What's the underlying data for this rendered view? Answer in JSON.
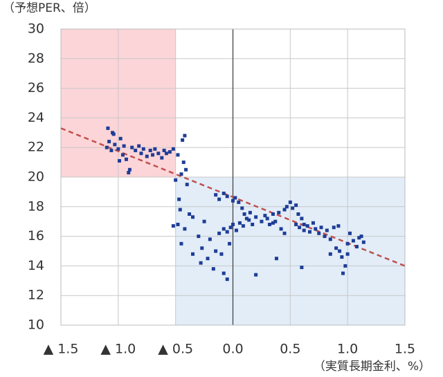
{
  "chart_data": {
    "type": "scatter",
    "y_label": "（予想PER、倍）",
    "x_label": "（実質長期金利、%）",
    "xlim": [
      -1.5,
      1.5
    ],
    "xticks": [
      {
        "value": -1.5,
        "label": "▲ 1.5"
      },
      {
        "value": -1.0,
        "label": "▲ 1.0"
      },
      {
        "value": -0.5,
        "label": "▲ 0.5"
      },
      {
        "value": 0,
        "label": "0.0"
      },
      0.5,
      {
        "value": 1.0,
        "label": "1.0"
      },
      1.5
    ],
    "ylim": [
      10,
      30
    ],
    "yticks": [
      10,
      12,
      14,
      16,
      18,
      20,
      22,
      24,
      26,
      28,
      30
    ],
    "grid": true,
    "regions": [
      {
        "xlim": [
          -1.5,
          -0.5
        ],
        "ylim": [
          20,
          30
        ],
        "color": "#fcd5d8"
      },
      {
        "xlim": [
          -0.5,
          1.5
        ],
        "ylim": [
          10,
          20
        ],
        "color": "#e2edf8"
      }
    ],
    "trend_line": {
      "x": [
        -1.5,
        1.5
      ],
      "y": [
        23.3,
        14.0
      ],
      "color": "#c0504d"
    },
    "series": [
      {
        "color": "#1f3d96",
        "x": [
          -1.1,
          -1.08,
          -1.06,
          -1.05,
          -1.03,
          -1.0,
          -0.98,
          -0.96,
          -0.95,
          -0.93,
          -0.9,
          -0.88,
          -0.85,
          -0.82,
          -0.8,
          -0.78,
          -0.75,
          -0.72,
          -0.7,
          -0.68,
          -0.65,
          -0.62,
          -0.6,
          -0.58,
          -0.55,
          -0.52,
          -1.09,
          -1.04,
          -0.99,
          -0.91,
          -0.5,
          -0.48,
          -0.45,
          -0.44,
          -0.42,
          -0.41,
          -0.4,
          -0.43,
          -0.47,
          -0.46,
          -0.48,
          -0.45,
          -0.42,
          -0.38,
          -0.35,
          -0.3,
          -0.27,
          -0.25,
          -0.22,
          -0.2,
          -0.17,
          -0.15,
          -0.12,
          -0.1,
          -0.08,
          -0.05,
          -0.03,
          -0.35,
          -0.28,
          -0.52,
          -0.15,
          -0.12,
          -0.08,
          -0.05,
          0.0,
          0.02,
          0.05,
          0.08,
          0.1,
          0.12,
          -0.08,
          -0.05,
          -0.02,
          0.0,
          0.03,
          0.06,
          0.09,
          0.14,
          0.17,
          0.2,
          0.25,
          0.28,
          0.3,
          0.32,
          0.35,
          0.37,
          0.4,
          0.42,
          0.45,
          0.47,
          0.5,
          0.52,
          0.55,
          0.57,
          0.58,
          0.6,
          0.62,
          0.45,
          0.38,
          0.2,
          0.62,
          0.65,
          0.67,
          0.7,
          0.72,
          0.75,
          0.77,
          0.8,
          0.82,
          0.85,
          0.88,
          0.9,
          0.93,
          0.95,
          0.98,
          1.0,
          1.02,
          1.05,
          1.08,
          1.1,
          1.12,
          1.14,
          0.96,
          0.85,
          0.6,
          0.92,
          1.0,
          0.55,
          0.35,
          0.15
        ],
        "y": [
          22.0,
          22.4,
          21.8,
          23.0,
          22.2,
          21.9,
          22.6,
          21.5,
          22.1,
          21.2,
          20.5,
          22.0,
          21.8,
          22.1,
          21.6,
          21.9,
          21.4,
          21.8,
          21.5,
          21.9,
          21.6,
          21.3,
          21.8,
          21.6,
          21.7,
          21.9,
          23.3,
          22.9,
          21.1,
          20.3,
          19.8,
          21.5,
          20.2,
          22.5,
          22.8,
          20.5,
          19.5,
          21.0,
          18.5,
          17.8,
          16.8,
          15.5,
          16.5,
          17.5,
          14.8,
          16.0,
          15.2,
          17.0,
          14.5,
          15.8,
          13.8,
          15.0,
          16.2,
          14.8,
          13.5,
          13.1,
          15.5,
          17.3,
          14.2,
          16.7,
          18.8,
          18.5,
          18.9,
          18.7,
          18.4,
          18.6,
          18.3,
          17.9,
          17.5,
          17.2,
          16.5,
          16.3,
          16.6,
          16.8,
          16.4,
          16.9,
          16.7,
          17.1,
          16.8,
          17.3,
          17.0,
          17.4,
          17.2,
          16.8,
          17.5,
          17.0,
          17.6,
          16.5,
          17.8,
          18.0,
          18.3,
          17.9,
          18.1,
          17.5,
          16.6,
          17.2,
          16.8,
          16.2,
          14.5,
          13.4,
          16.4,
          16.7,
          16.3,
          16.9,
          16.5,
          16.2,
          16.6,
          16.0,
          16.4,
          15.8,
          16.6,
          15.2,
          15.0,
          14.6,
          14.0,
          15.5,
          16.2,
          15.7,
          15.3,
          15.9,
          16.0,
          15.6,
          13.5,
          14.8,
          13.9,
          16.7,
          14.8,
          16.8,
          16.9,
          17.6
        ]
      }
    ]
  }
}
